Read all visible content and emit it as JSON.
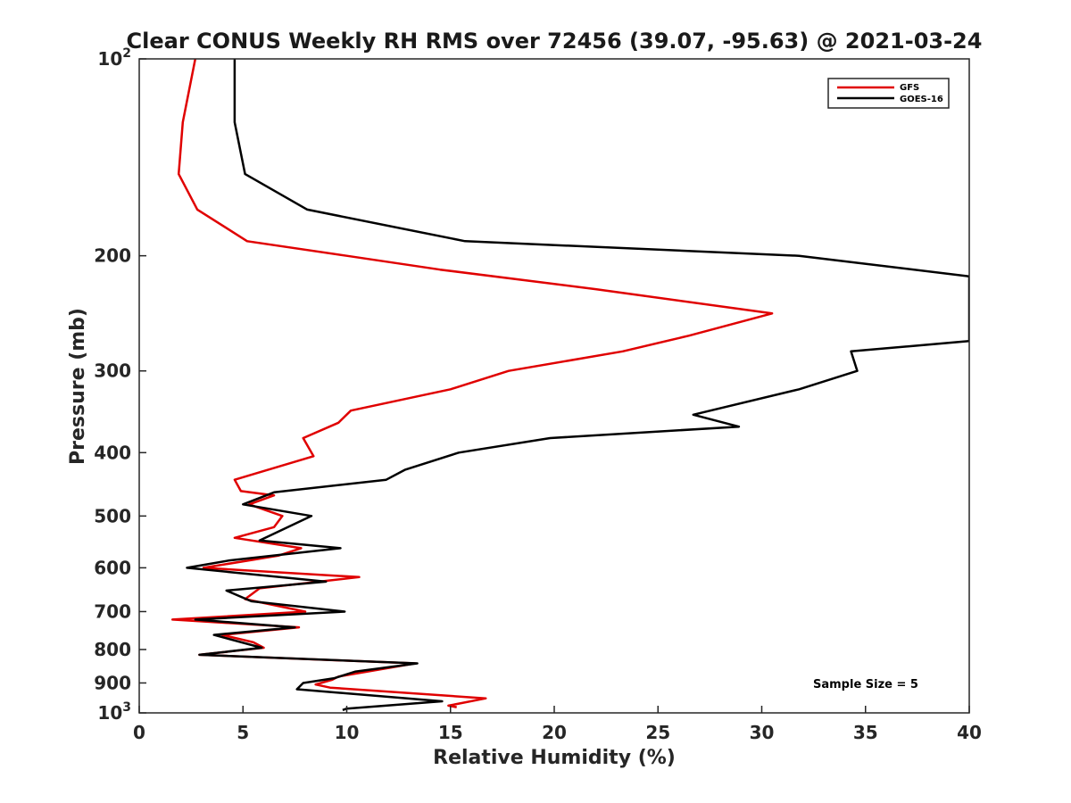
{
  "chart_data": {
    "type": "line",
    "title": "Clear CONUS Weekly RH RMS over 72456 (39.07, -95.63) @ 2021-03-24",
    "xlabel": "Relative Humidity (%)",
    "ylabel": "Pressure (mb)",
    "xlim": [
      0,
      40
    ],
    "ylim": [
      100,
      1000
    ],
    "y_scale": "log",
    "y_reversed": true,
    "x_ticks": [
      0,
      5,
      10,
      15,
      20,
      25,
      30,
      35,
      40
    ],
    "x_tick_labels": [
      "0",
      "5",
      "10",
      "15",
      "20",
      "25",
      "30",
      "35",
      "40"
    ],
    "y_ticks": [
      {
        "value": 100,
        "base": "10",
        "exp": "2"
      },
      {
        "value": 200,
        "label": "200"
      },
      {
        "value": 300,
        "label": "300"
      },
      {
        "value": 400,
        "label": "400"
      },
      {
        "value": 500,
        "label": "500"
      },
      {
        "value": 600,
        "label": "600"
      },
      {
        "value": 700,
        "label": "700"
      },
      {
        "value": 800,
        "label": "800"
      },
      {
        "value": 900,
        "label": "900"
      },
      {
        "value": 1000,
        "base": "10",
        "exp": "3"
      }
    ],
    "legend_position": "top-right",
    "annotation": "Sample Size = 5",
    "series": [
      {
        "name": "GFS",
        "color": "#e00000",
        "points": [
          [
            2.7,
            100
          ],
          [
            2.1,
            125
          ],
          [
            1.9,
            150
          ],
          [
            2.8,
            170
          ],
          [
            5.2,
            190
          ],
          [
            10.0,
            200
          ],
          [
            14.5,
            210
          ],
          [
            22.0,
            225
          ],
          [
            30.5,
            245
          ],
          [
            26.5,
            265
          ],
          [
            23.3,
            280
          ],
          [
            17.8,
            300
          ],
          [
            15.0,
            320
          ],
          [
            10.2,
            345
          ],
          [
            9.6,
            360
          ],
          [
            7.9,
            380
          ],
          [
            8.4,
            405
          ],
          [
            4.6,
            440
          ],
          [
            4.9,
            458
          ],
          [
            6.5,
            465
          ],
          [
            5.3,
            480
          ],
          [
            6.9,
            500
          ],
          [
            6.5,
            520
          ],
          [
            4.6,
            540
          ],
          [
            7.8,
            560
          ],
          [
            6.7,
            575
          ],
          [
            3.1,
            600
          ],
          [
            10.6,
            620
          ],
          [
            5.8,
            645
          ],
          [
            5.1,
            670
          ],
          [
            8.0,
            700
          ],
          [
            1.6,
            720
          ],
          [
            7.7,
            740
          ],
          [
            4.0,
            760
          ],
          [
            5.5,
            780
          ],
          [
            6.0,
            795
          ],
          [
            2.9,
            815
          ],
          [
            13.3,
            840
          ],
          [
            9.6,
            880
          ],
          [
            9.3,
            890
          ],
          [
            8.5,
            905
          ],
          [
            9.2,
            915
          ],
          [
            16.7,
            950
          ],
          [
            14.9,
            975
          ],
          [
            15.3,
            980
          ]
        ]
      },
      {
        "name": "GOES-16",
        "color": "#000000",
        "points": [
          [
            4.6,
            100
          ],
          [
            4.6,
            125
          ],
          [
            5.1,
            150
          ],
          [
            8.1,
            170
          ],
          [
            15.7,
            190
          ],
          [
            31.8,
            200
          ],
          [
            40.0,
            215
          ],
          [
            40.0,
            270
          ],
          [
            34.3,
            280
          ],
          [
            34.6,
            300
          ],
          [
            31.8,
            320
          ],
          [
            26.7,
            350
          ],
          [
            28.9,
            365
          ],
          [
            19.8,
            380
          ],
          [
            15.4,
            400
          ],
          [
            12.8,
            425
          ],
          [
            11.9,
            440
          ],
          [
            6.5,
            460
          ],
          [
            5.0,
            480
          ],
          [
            8.3,
            500
          ],
          [
            5.8,
            545
          ],
          [
            9.7,
            560
          ],
          [
            4.3,
            585
          ],
          [
            2.3,
            600
          ],
          [
            9.0,
            630
          ],
          [
            4.2,
            650
          ],
          [
            5.4,
            675
          ],
          [
            9.9,
            700
          ],
          [
            2.7,
            720
          ],
          [
            7.5,
            740
          ],
          [
            3.6,
            760
          ],
          [
            5.9,
            795
          ],
          [
            2.9,
            815
          ],
          [
            13.4,
            840
          ],
          [
            10.4,
            865
          ],
          [
            9.4,
            885
          ],
          [
            7.9,
            900
          ],
          [
            7.6,
            920
          ],
          [
            14.6,
            960
          ],
          [
            10.0,
            985
          ],
          [
            9.8,
            990
          ]
        ]
      }
    ]
  }
}
